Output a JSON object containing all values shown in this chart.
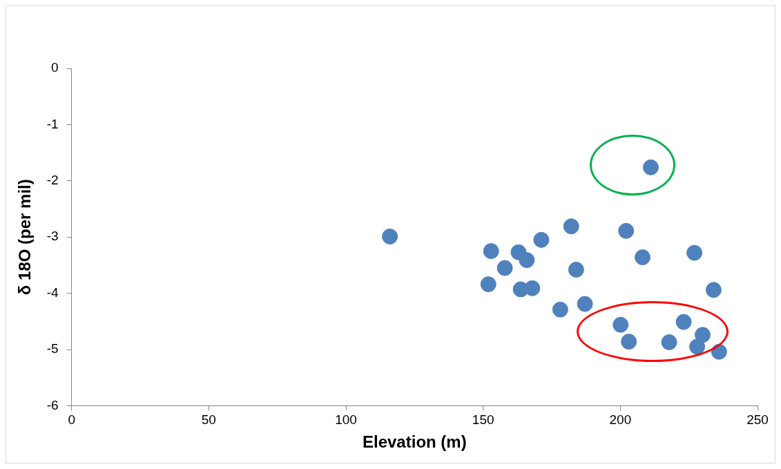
{
  "chart_data": {
    "type": "scatter",
    "xlabel": "Elevation (m)",
    "ylabel": "δ 18O (per mil)",
    "color": "#4f81bd",
    "marker": "circle",
    "x": [
      116,
      152.9,
      151.9,
      157.9,
      162.9,
      165.9,
      163.7,
      167.9,
      171.2,
      178.1,
      182.1,
      183.9,
      187.1,
      200.1,
      203.1,
      202.1,
      208.1,
      211.1,
      217.8,
      223.1,
      227,
      230,
      228,
      234,
      236
    ],
    "values": [
      -2.99,
      -3.25,
      -3.84,
      -3.55,
      -3.27,
      -3.41,
      -3.93,
      -3.91,
      -3.05,
      -4.29,
      -2.81,
      -3.58,
      -4.19,
      -4.56,
      -4.86,
      -2.89,
      -3.36,
      -1.76,
      -4.87,
      -4.51,
      -3.28,
      -4.74,
      -4.95,
      -3.94,
      -5.04
    ],
    "xlim": [
      0,
      250
    ],
    "xticks": [
      0,
      50,
      100,
      150,
      200,
      250
    ],
    "ylim": [
      -6,
      0
    ],
    "yticks": [
      -6,
      -5,
      -4,
      -3,
      -2,
      -1,
      0
    ]
  }
}
